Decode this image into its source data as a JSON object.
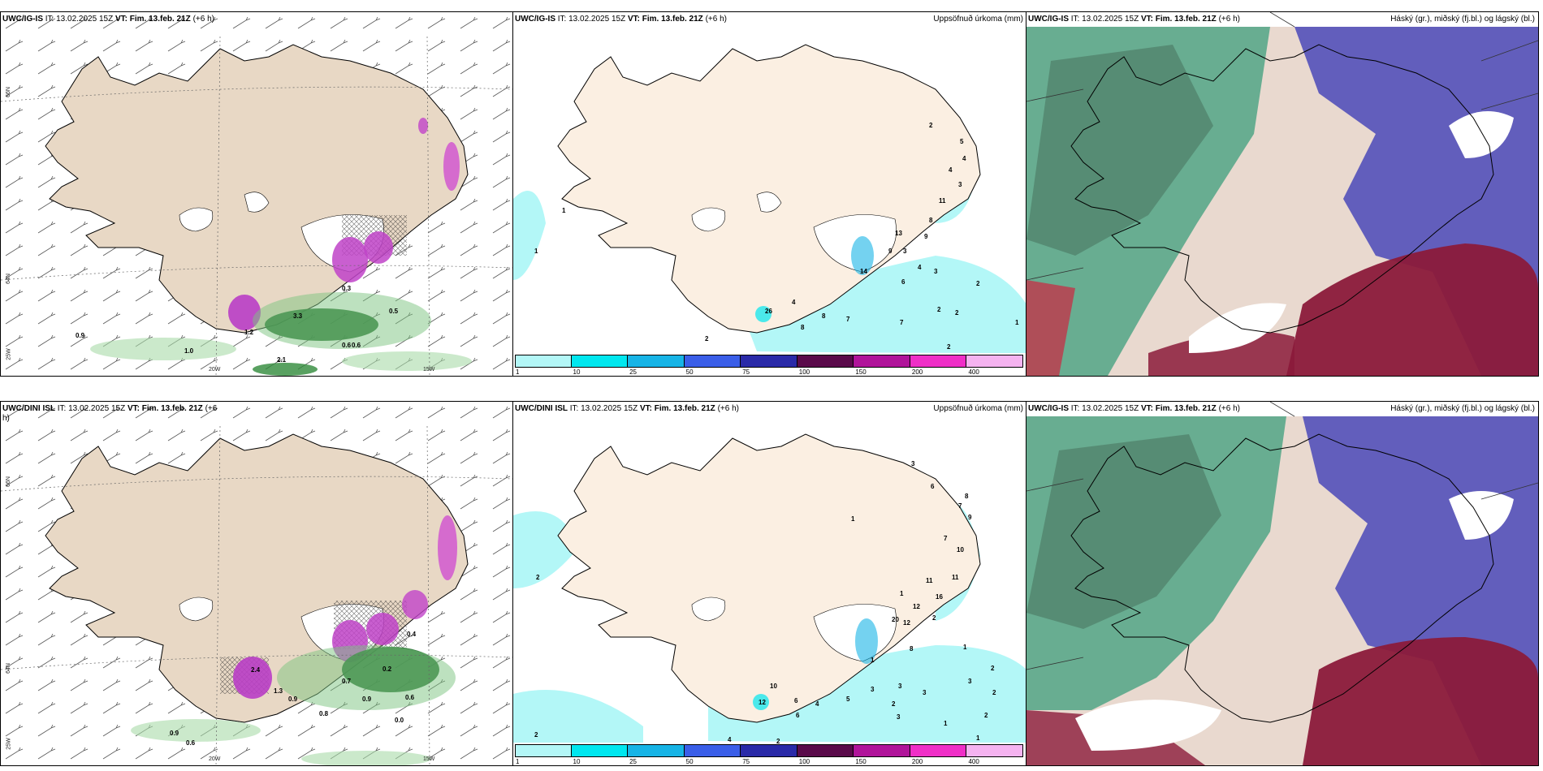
{
  "panels": {
    "p1": {
      "model": "UWC/IG-IS",
      "it": "IT: 13.02.2025 15Z",
      "vt_label": "VT:",
      "vt": "Fim. 13.feb. 21Z",
      "lead": "(+6 h)",
      "right": ""
    },
    "p2": {
      "model": "UWC/IG-IS",
      "it": "IT: 13.02.2025 15Z",
      "vt_label": "VT:",
      "vt": "Fim. 13.feb. 21Z",
      "lead": "(+6 h)",
      "right": "Uppsöfnuð úrkoma (mm)"
    },
    "p3": {
      "model": "UWC/IG-IS",
      "it": "IT: 13.02.2025 15Z",
      "vt_label": "VT:",
      "vt": "Fim. 13.feb. 21Z",
      "lead": "(+6 h)",
      "right": "Háský (gr.), miðský (fj.bl.) og lágský (bl.)"
    },
    "p4": {
      "model": "UWC/DINI ISL",
      "it": "IT: 13.02.2025 15Z",
      "vt_label": "VT:",
      "vt": "Fim. 13.feb. 21Z",
      "lead": "(+6",
      "lead2": "h)",
      "right": ""
    },
    "p5": {
      "model": "UWC/DINI ISL",
      "it": "IT: 13.02.2025 15Z",
      "vt_label": "VT:",
      "vt": "Fim. 13.feb. 21Z",
      "lead": "(+6 h)",
      "right": "Uppsöfnuð úrkoma (mm)"
    },
    "p6": {
      "model": "UWC/IG-IS",
      "it": "IT: 13.02.2025 15Z",
      "vt_label": "VT:",
      "vt": "Fim. 13.feb. 21Z",
      "lead": "(+6 h)",
      "right": "Háský (gr.), miðský (fj.bl.) og lágský (bl.)"
    }
  },
  "axis": {
    "lat66": "66N",
    "lat64": "64N",
    "lat63": "63N",
    "lon20": "20W",
    "lon15": "15W",
    "lon25": "25W"
  },
  "colorbar": {
    "labels": [
      "1",
      "10",
      "25",
      "50",
      "75",
      "100",
      "150",
      "200",
      "400"
    ],
    "colors": [
      "#b3f7f7",
      "#00e7ef",
      "#17b4e6",
      "#3a5ee8",
      "#2a2aa8",
      "#5a0a4a",
      "#b0149a",
      "#ef2fc7",
      "#f5b3f0"
    ]
  },
  "precip_top": [
    "2",
    "5",
    "4",
    "4",
    "3",
    "11",
    "8",
    "9",
    "3",
    "13",
    "9",
    "14",
    "4",
    "6",
    "3",
    "2",
    "4",
    "8",
    "7",
    "7",
    "2",
    "2",
    "1",
    "2",
    "1",
    "1",
    "26",
    "8",
    "2"
  ],
  "precip_bottom": [
    "3",
    "6",
    "8",
    "7",
    "9",
    "7",
    "10",
    "11",
    "11",
    "16",
    "12",
    "12",
    "2",
    "1",
    "1",
    "20",
    "1",
    "8",
    "1",
    "2",
    "3",
    "2",
    "2",
    "10",
    "6",
    "12",
    "6",
    "4",
    "5",
    "3",
    "2",
    "3",
    "3",
    "3",
    "1",
    "1",
    "2",
    "2",
    "2",
    "4"
  ],
  "wind_top_labels": [
    "0.9",
    "1.0",
    "2.1",
    "0.5",
    "0.6",
    "0.6",
    "3.3",
    "1.2",
    "0.3"
  ],
  "wind_bottom_labels": [
    "0.9",
    "0.6",
    "0.9",
    "1.3",
    "0.6",
    "2.4",
    "0.2",
    "0.9",
    "0.0",
    "0.8",
    "0.7",
    "0.4"
  ]
}
